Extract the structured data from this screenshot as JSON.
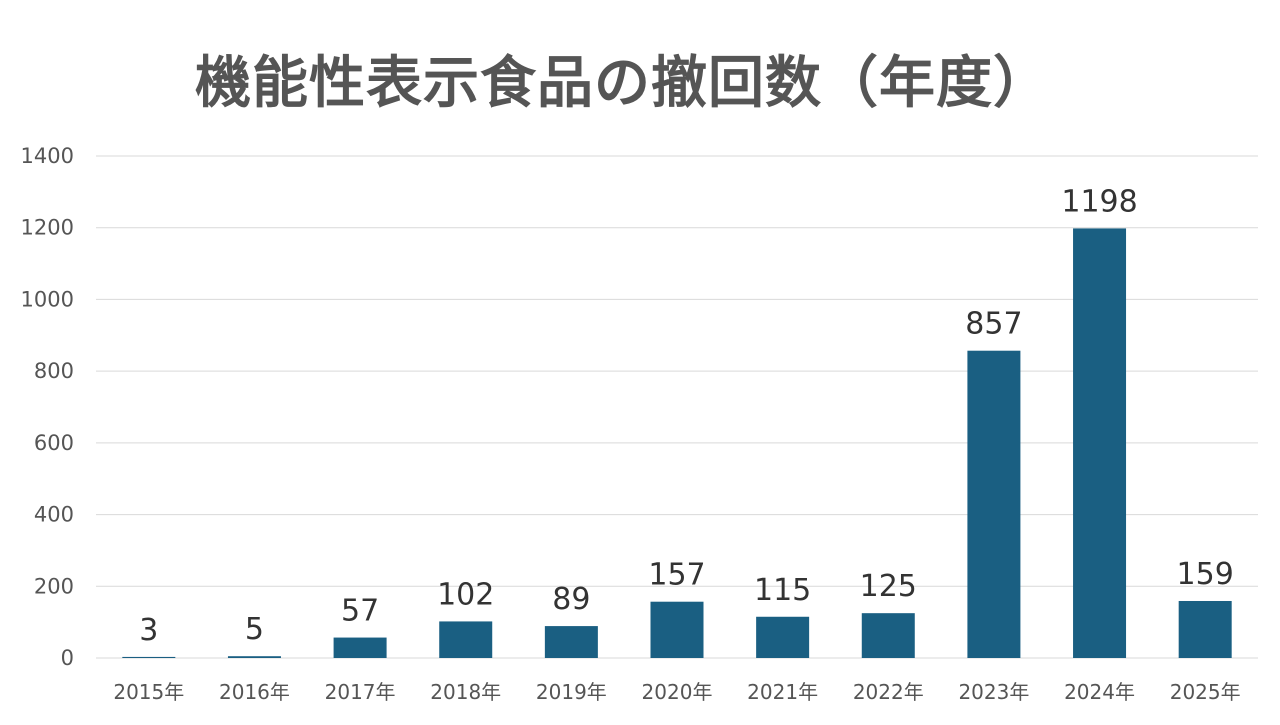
{
  "chart_data": {
    "type": "bar",
    "title": "機能性表示食品の撤回数（年度）",
    "xlabel": "",
    "ylabel": "",
    "categories": [
      "2015年",
      "2016年",
      "2017年",
      "2018年",
      "2019年",
      "2020年",
      "2021年",
      "2022年",
      "2023年",
      "2024年",
      "2025年"
    ],
    "values": [
      3,
      5,
      57,
      102,
      89,
      157,
      115,
      125,
      857,
      1198,
      159
    ],
    "ylim": [
      0,
      1400
    ],
    "yticks": [
      0,
      200,
      400,
      600,
      800,
      1000,
      1200,
      1400
    ],
    "grid": true,
    "legend": "none",
    "bar_color": "#1a5f82"
  }
}
